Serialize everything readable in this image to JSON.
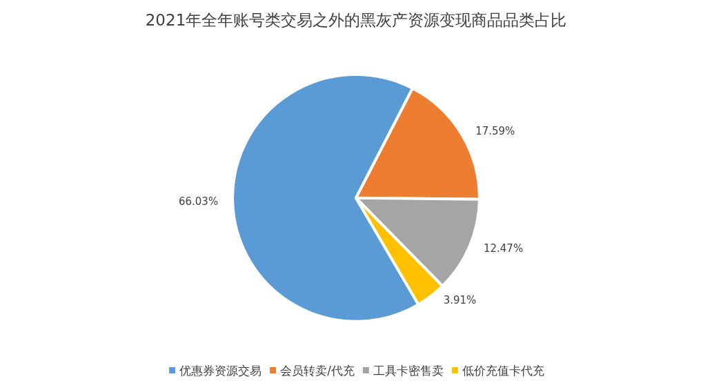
{
  "chart_data": {
    "type": "pie",
    "title": "2021年全年账号类交易之外的黑灰产资源变现商品品类占比",
    "categories": [
      "优惠券资源交易",
      "会员转卖/代充",
      "工具卡密售卖",
      "低价充值卡代充"
    ],
    "values": [
      66.03,
      17.59,
      12.47,
      3.91
    ],
    "colors": [
      "#5b9bd5",
      "#ed7d31",
      "#a5a5a5",
      "#ffc000"
    ],
    "value_labels": [
      "66.03%",
      "17.59%",
      "12.47%",
      "3.91%"
    ],
    "legend": "bottom"
  }
}
